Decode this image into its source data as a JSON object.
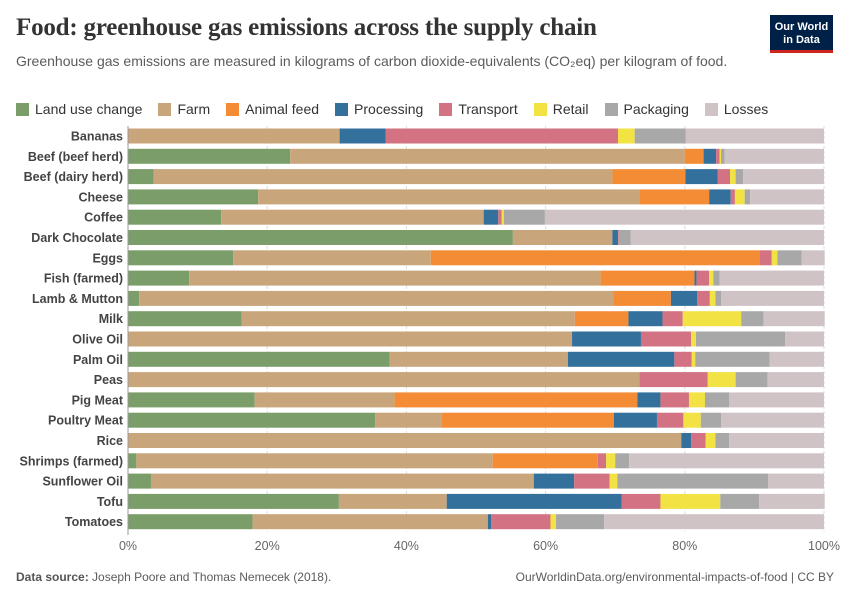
{
  "title": "Food: greenhouse gas emissions across the supply chain",
  "subtitle": "Greenhouse gas emissions are measured in kilograms of carbon dioxide-equivalents (CO₂eq) per kilogram of food.",
  "logo": {
    "line1": "Our World",
    "line2": "in Data"
  },
  "footer": {
    "source_label": "Data source:",
    "source_text": "Joseph Poore and Thomas Nemecek (2018).",
    "right": "OurWorldinData.org/environmental-impacts-of-food | CC BY"
  },
  "chart_data": {
    "type": "bar",
    "orientation": "horizontal",
    "stacked": "100%",
    "xlim": [
      0,
      100
    ],
    "x_ticks": [
      "0%",
      "20%",
      "40%",
      "60%",
      "80%",
      "100%"
    ],
    "grid": true,
    "legend_position": "top",
    "categories": [
      "Bananas",
      "Beef (beef herd)",
      "Beef (dairy herd)",
      "Cheese",
      "Coffee",
      "Dark Chocolate",
      "Eggs",
      "Fish (farmed)",
      "Lamb & Mutton",
      "Milk",
      "Olive Oil",
      "Palm Oil",
      "Peas",
      "Pig Meat",
      "Poultry Meat",
      "Rice",
      "Shrimps (farmed)",
      "Sunflower Oil",
      "Tofu",
      "Tomatoes"
    ],
    "series": [
      {
        "name": "Land use change",
        "color": "#7a9d69",
        "values": [
          0,
          23.3,
          3.7,
          18.7,
          13.4,
          55.3,
          15.1,
          8.8,
          1.6,
          16.3,
          0,
          37.6,
          0,
          18.2,
          35.5,
          0,
          1.2,
          3.3,
          30.3,
          17.9
        ]
      },
      {
        "name": "Farm",
        "color": "#c9a57b",
        "values": [
          30.4,
          56.7,
          65.9,
          54.8,
          37.7,
          14.3,
          28.4,
          59.1,
          68.1,
          47.9,
          63.8,
          25.6,
          73.5,
          20.1,
          9.5,
          79.5,
          51.2,
          55.0,
          15.5,
          33.8
        ]
      },
      {
        "name": "Animal feed",
        "color": "#f48c36",
        "values": [
          0,
          2.7,
          10.5,
          10.0,
          0,
          0,
          47.2,
          13.5,
          8.3,
          7.7,
          0,
          0,
          0,
          34.9,
          24.8,
          0,
          15.1,
          0,
          0,
          0
        ]
      },
      {
        "name": "Processing",
        "color": "#33709c",
        "values": [
          6.6,
          1.8,
          4.6,
          3.1,
          2.1,
          0.8,
          0,
          0.3,
          3.8,
          4.9,
          9.9,
          15.3,
          0,
          3.3,
          6.2,
          1.4,
          0,
          5.8,
          25.1,
          0.5
        ]
      },
      {
        "name": "Transport",
        "color": "#d27282",
        "values": [
          33.4,
          0.5,
          1.8,
          0.6,
          0.5,
          0.1,
          1.8,
          1.8,
          1.8,
          2.9,
          7.2,
          2.5,
          9.8,
          4.1,
          3.8,
          2.1,
          1.2,
          5.1,
          5.6,
          8.5
        ]
      },
      {
        "name": "Retail",
        "color": "#f2e243",
        "values": [
          2.4,
          0.2,
          0.8,
          1.4,
          0.3,
          0,
          0.8,
          0.6,
          0.8,
          8.4,
          0.7,
          0.5,
          4.0,
          2.3,
          2.5,
          1.4,
          1.3,
          1.1,
          8.6,
          0.8
        ]
      },
      {
        "name": "Packaging",
        "color": "#a8a8a8",
        "values": [
          7.3,
          0.5,
          1.1,
          0.8,
          5.9,
          1.7,
          3.5,
          0.9,
          0.8,
          3.2,
          12.8,
          10.7,
          4.6,
          3.5,
          2.9,
          2.0,
          2.0,
          21.7,
          5.6,
          6.9
        ]
      },
      {
        "name": "Losses",
        "color": "#d0c3c5",
        "values": [
          19.9,
          14.3,
          11.6,
          10.6,
          40.1,
          27.8,
          3.3,
          15.0,
          14.8,
          8.8,
          5.6,
          7.8,
          8.1,
          13.6,
          14.8,
          13.6,
          28.0,
          8.0,
          9.4,
          31.6
        ]
      }
    ]
  }
}
